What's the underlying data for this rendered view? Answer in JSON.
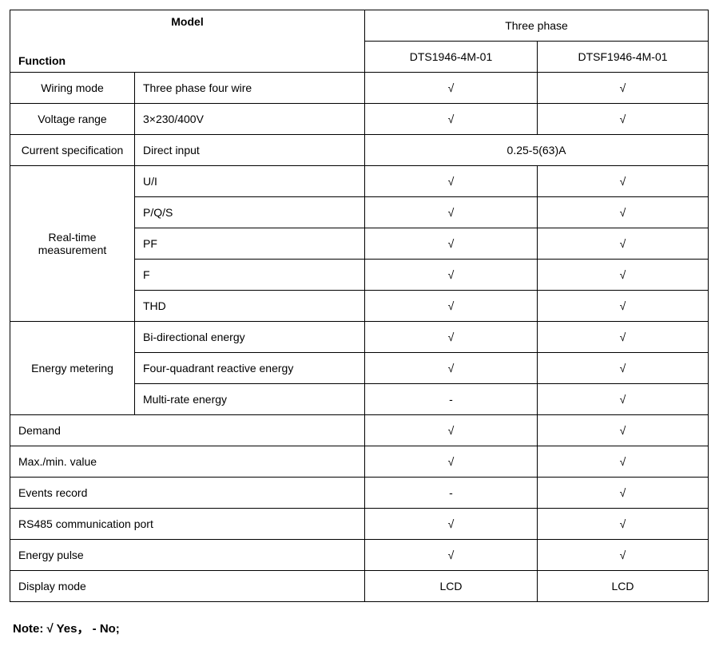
{
  "header": {
    "model_label": "Model",
    "function_label": "Function",
    "group_header": "Three phase",
    "model_a": "DTS1946-4M-01",
    "model_b": "DTSF1946-4M-01"
  },
  "rows": {
    "wiring_mode": {
      "label": "Wiring mode",
      "desc": "Three phase four wire",
      "a": "√",
      "b": "√"
    },
    "voltage_range": {
      "label": "Voltage range",
      "desc": "3×230/400V",
      "a": "√",
      "b": "√"
    },
    "current_spec": {
      "label": "Current specification",
      "desc": "Direct input",
      "merged": "0.25-5(63)A"
    },
    "realtime": {
      "label": "Real-time measurement",
      "items": [
        {
          "desc": "U/I",
          "a": "√",
          "b": "√"
        },
        {
          "desc": "P/Q/S",
          "a": "√",
          "b": "√"
        },
        {
          "desc": "PF",
          "a": "√",
          "b": "√"
        },
        {
          "desc": "F",
          "a": "√",
          "b": "√"
        },
        {
          "desc": "THD",
          "a": "√",
          "b": "√"
        }
      ]
    },
    "energy_metering": {
      "label": "Energy metering",
      "items": [
        {
          "desc": "Bi-directional energy",
          "a": "√",
          "b": "√"
        },
        {
          "desc": "Four-quadrant reactive energy",
          "a": "√",
          "b": "√"
        },
        {
          "desc": "Multi-rate energy",
          "a": "-",
          "b": "√"
        }
      ]
    },
    "demand": {
      "label": "Demand",
      "a": "√",
      "b": "√"
    },
    "maxmin": {
      "label": "Max./min. value",
      "a": "√",
      "b": "√"
    },
    "events": {
      "label": "Events record",
      "a": "-",
      "b": "√"
    },
    "rs485": {
      "label": "RS485 communication port",
      "a": "√",
      "b": "√"
    },
    "energy_pulse": {
      "label": "Energy pulse",
      "a": "√",
      "b": "√"
    },
    "display_mode": {
      "label": "Display mode",
      "a": "LCD",
      "b": "LCD"
    }
  },
  "note": "Note: √    Yes，   -   No;"
}
